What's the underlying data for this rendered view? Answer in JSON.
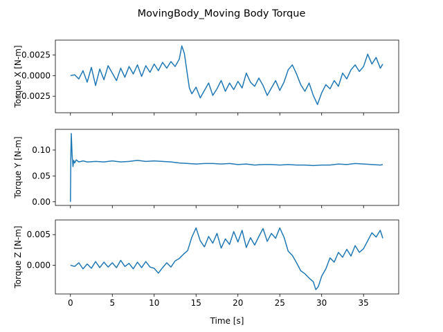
{
  "chart_data": {
    "title": "MovingBody_Moving Body Torque",
    "type": "line",
    "xlabel": "Time [s]",
    "xlim": [
      -1.8,
      39.2
    ],
    "xticks": [
      0,
      5,
      10,
      15,
      20,
      25,
      30,
      35
    ],
    "xtick_labels": [
      "0",
      "5",
      "10",
      "15",
      "20",
      "25",
      "30",
      "35"
    ],
    "grid": false,
    "panels": [
      {
        "ylabel": "Torque X [N-m]",
        "ylim": [
          -0.0045,
          0.0043
        ],
        "yticks": [
          -0.0025,
          0.0,
          0.0025
        ],
        "ytick_labels": [
          "−0.0025",
          "0.0000",
          "0.0025"
        ],
        "series": {
          "x": [
            0,
            0.5,
            1,
            1.5,
            2,
            2.5,
            3,
            3.5,
            4,
            4.5,
            5,
            5.5,
            6,
            6.5,
            7,
            7.5,
            8,
            8.5,
            9,
            9.5,
            10,
            10.5,
            11,
            11.5,
            12,
            12.5,
            13,
            13.3,
            13.6,
            13.9,
            14.2,
            14.5,
            15,
            15.5,
            16,
            16.5,
            17,
            17.5,
            18,
            18.5,
            19,
            19.5,
            20,
            20.5,
            21,
            21.5,
            22,
            22.5,
            23,
            23.5,
            24,
            24.5,
            25,
            25.5,
            26,
            26.5,
            27,
            27.5,
            28,
            28.5,
            29,
            29.5,
            30,
            30.5,
            31,
            31.5,
            32,
            32.5,
            33,
            33.5,
            34,
            34.5,
            35,
            35.5,
            36,
            36.5,
            37,
            37.3
          ],
          "y": [
            0.0,
            0.0001,
            -0.0004,
            0.0006,
            -0.0008,
            0.001,
            -0.0012,
            0.0008,
            -0.0005,
            0.0012,
            0.0003,
            -0.0006,
            0.0009,
            -0.0002,
            0.0011,
            0.0002,
            0.0013,
            -0.0001,
            0.0012,
            0.0004,
            0.0014,
            0.0006,
            0.0016,
            0.0009,
            0.0017,
            0.0011,
            0.002,
            0.0036,
            0.0027,
            0.0006,
            -0.0015,
            -0.0022,
            -0.0014,
            -0.0027,
            -0.0018,
            -0.0009,
            -0.0024,
            -0.0016,
            -0.0006,
            -0.0019,
            -0.0009,
            -0.0017,
            -0.0007,
            -0.0015,
            0.0003,
            -0.0008,
            -0.0013,
            -0.0003,
            -0.0012,
            -0.0024,
            -0.0015,
            -0.0006,
            -0.0018,
            -0.0008,
            0.0007,
            0.0013,
            0.0002,
            -0.0011,
            -0.0019,
            -0.0009,
            -0.0024,
            -0.0035,
            -0.0021,
            -0.0011,
            -0.0016,
            -0.0006,
            -0.0013,
            0.0003,
            -0.0004,
            0.0007,
            0.0013,
            0.0005,
            0.0011,
            0.0026,
            0.0014,
            0.0022,
            0.0009,
            0.0014
          ]
        }
      },
      {
        "ylabel": "Torque Y [N-m]",
        "ylim": [
          -0.007,
          0.14
        ],
        "yticks": [
          0.0,
          0.05,
          0.1
        ],
        "ytick_labels": [
          "0.00",
          "0.05",
          "0.10"
        ],
        "series": {
          "x": [
            0,
            0.05,
            0.1,
            0.2,
            0.3,
            0.4,
            0.5,
            0.7,
            1,
            1.5,
            2,
            3,
            4,
            5,
            6,
            7,
            8,
            9,
            10,
            11,
            12,
            13,
            14,
            15,
            16,
            17,
            18,
            19,
            20,
            21,
            22,
            23,
            24,
            25,
            26,
            27,
            28,
            29,
            30,
            31,
            32,
            33,
            34,
            35,
            36,
            37,
            37.3
          ],
          "y": [
            0.0,
            0.095,
            0.132,
            0.09,
            0.068,
            0.08,
            0.075,
            0.081,
            0.077,
            0.079,
            0.077,
            0.078,
            0.077,
            0.079,
            0.077,
            0.078,
            0.08,
            0.078,
            0.079,
            0.078,
            0.077,
            0.075,
            0.074,
            0.073,
            0.074,
            0.074,
            0.073,
            0.074,
            0.072,
            0.073,
            0.071,
            0.072,
            0.072,
            0.071,
            0.072,
            0.071,
            0.071,
            0.07,
            0.071,
            0.071,
            0.073,
            0.072,
            0.074,
            0.073,
            0.072,
            0.071,
            0.072
          ]
        }
      },
      {
        "ylabel": "Torque Z [N-m]",
        "ylim": [
          -0.0047,
          0.0074
        ],
        "yticks": [
          0.0,
          0.005
        ],
        "ytick_labels": [
          "0.000",
          "0.005"
        ],
        "series": {
          "x": [
            0,
            0.5,
            1,
            1.5,
            2,
            2.5,
            3,
            3.5,
            4,
            4.5,
            5,
            5.5,
            6,
            6.5,
            7,
            7.5,
            8,
            8.5,
            9,
            9.5,
            10,
            10.5,
            11,
            11.5,
            12,
            12.5,
            13,
            13.5,
            14,
            14.5,
            15,
            15.5,
            16,
            16.5,
            17,
            17.5,
            18,
            18.5,
            19,
            19.5,
            20,
            20.5,
            21,
            21.5,
            22,
            22.5,
            23,
            23.5,
            24,
            24.5,
            25,
            25.5,
            26,
            26.5,
            27,
            27.5,
            28,
            28.5,
            29,
            29.3,
            29.6,
            30,
            30.5,
            31,
            31.5,
            32,
            32.5,
            33,
            33.5,
            34,
            34.5,
            35,
            35.5,
            36,
            36.5,
            37,
            37.3
          ],
          "y": [
            0.0,
            -0.0002,
            0.0004,
            -0.0006,
            0.0002,
            -0.0005,
            0.0006,
            -0.0004,
            0.0005,
            -0.0003,
            0.0004,
            -0.0004,
            0.0008,
            -0.0002,
            0.0003,
            -0.0006,
            0.0005,
            -0.0004,
            0.0006,
            -0.0003,
            -0.0005,
            -0.0013,
            -0.0004,
            0.0004,
            -0.0003,
            0.0007,
            0.0011,
            0.0018,
            0.0024,
            0.0046,
            0.0061,
            0.004,
            0.003,
            0.0047,
            0.0036,
            0.0052,
            0.0028,
            0.0043,
            0.0034,
            0.0055,
            0.0038,
            0.0057,
            0.0029,
            0.0045,
            0.0033,
            0.0047,
            0.006,
            0.0039,
            0.0052,
            0.0044,
            0.0061,
            0.0046,
            0.0023,
            0.0016,
            0.0004,
            -0.0009,
            -0.0014,
            -0.0021,
            -0.0027,
            -0.004,
            -0.0035,
            -0.0018,
            -0.0006,
            0.0012,
            0.0005,
            0.0021,
            0.0013,
            0.0026,
            0.0015,
            0.0032,
            0.0021,
            0.0027,
            0.004,
            0.0053,
            0.0046,
            0.0057,
            0.0044
          ]
        }
      }
    ]
  }
}
